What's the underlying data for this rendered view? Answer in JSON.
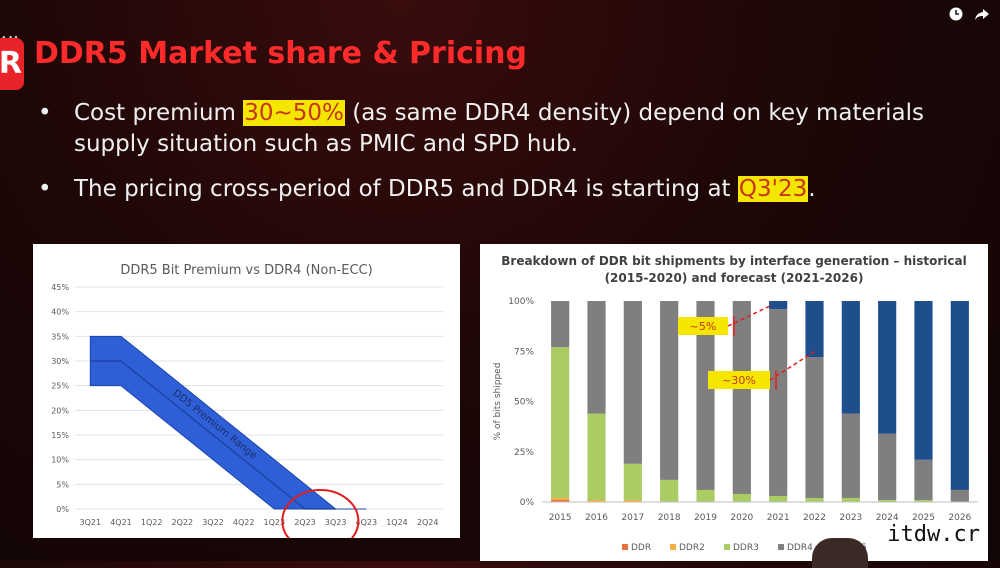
{
  "brand": {
    "top": "AM",
    "letter": "R"
  },
  "slide": {
    "title": "DDR5 Market share & Pricing",
    "bullet1_pre": "Cost premium ",
    "bullet1_hl": "30~50%",
    "bullet1_post": " (as same DDR4 density) depend on key materials supply situation such as PMIC and SPD hub.",
    "bullet2_pre": "The pricing cross-period of DDR5 and DDR4 is starting at ",
    "bullet2_hl": "Q3'23",
    "bullet2_post": "."
  },
  "icons": [
    "clock-icon",
    "share-icon"
  ],
  "watermark": "itdw.cr",
  "chart_data": [
    {
      "type": "area",
      "title": "DDR5 Bit Premium vs DDR4 (Non-ECC)",
      "categories": [
        "3Q21",
        "4Q21",
        "1Q22",
        "2Q22",
        "3Q22",
        "4Q22",
        "1Q23",
        "2Q23",
        "3Q23",
        "4Q23",
        "1Q24",
        "2Q24"
      ],
      "band_upper": [
        35,
        35,
        30,
        25,
        20,
        15,
        10,
        5,
        0,
        0,
        null,
        null
      ],
      "band_lower": [
        25,
        25,
        20,
        15,
        10,
        5,
        0,
        0,
        0,
        0,
        null,
        null
      ],
      "center_line": [
        30,
        30,
        25,
        20,
        15,
        10,
        5,
        0,
        0,
        null,
        null,
        null
      ],
      "band_label": "DD5 Premium Range",
      "ylim": [
        0,
        45
      ],
      "yticks": [
        "0%",
        "5%",
        "10%",
        "15%",
        "20%",
        "25%",
        "30%",
        "35%",
        "40%",
        "45%"
      ],
      "highlight_circle": "2Q23-3Q23",
      "color": "#2f5fd6"
    },
    {
      "type": "bar",
      "stacked": true,
      "title": "Breakdown of DDR bit shipments by interface generation – historical (2015-2020) and forecast (2021-2026)",
      "ylabel": "% of bits shipped",
      "categories": [
        "2015",
        "2016",
        "2017",
        "2018",
        "2019",
        "2020",
        "2021",
        "2022",
        "2023",
        "2024",
        "2025",
        "2026"
      ],
      "yticks": [
        "0%",
        "25%",
        "50%",
        "75%",
        "100%"
      ],
      "series": [
        {
          "name": "DDR",
          "color": "#e8733a",
          "values": [
            1,
            0,
            0,
            0,
            0,
            0,
            0,
            0,
            0,
            0,
            0,
            0
          ]
        },
        {
          "name": "DDR2",
          "color": "#f4b042",
          "values": [
            1,
            1,
            1,
            0,
            0,
            0,
            0,
            0,
            0,
            0,
            0,
            0
          ]
        },
        {
          "name": "DDR3",
          "color": "#a9cc63",
          "values": [
            75,
            43,
            18,
            11,
            6,
            4,
            3,
            2,
            2,
            1,
            1,
            0
          ]
        },
        {
          "name": "DDR4",
          "color": "#7f7f7f",
          "values": [
            23,
            56,
            81,
            89,
            94,
            96,
            93,
            70,
            42,
            33,
            20,
            6
          ]
        },
        {
          "name": "DDR5",
          "color": "#1f4e8c",
          "values": [
            0,
            0,
            0,
            0,
            0,
            0,
            4,
            28,
            56,
            66,
            79,
            94
          ]
        }
      ],
      "annotations": [
        "~5%",
        "~30%"
      ]
    }
  ]
}
